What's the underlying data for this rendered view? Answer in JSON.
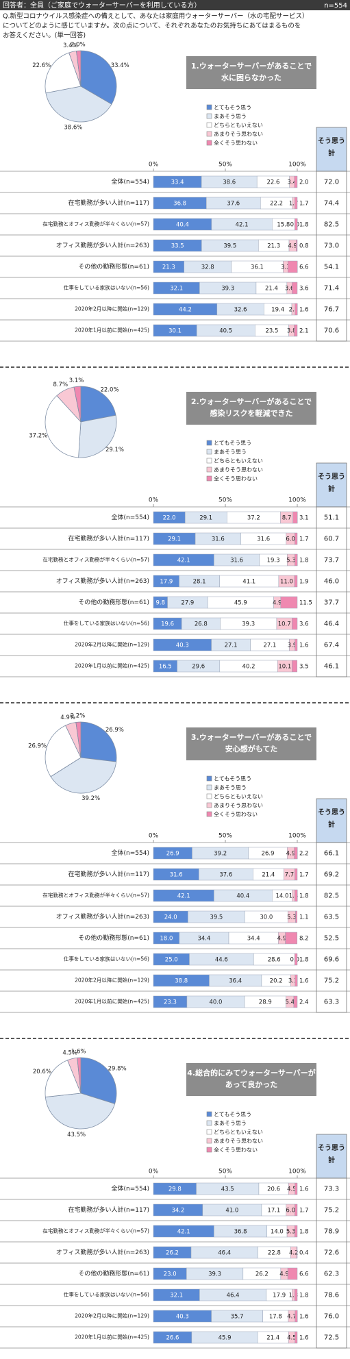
{
  "header": {
    "respondents": "回答者：全員（ご家庭でウォーターサーバーを利用している方）",
    "n": "n=554"
  },
  "question": [
    "Q.新型コロナウイルス感染症への備えとして、あなたは家庭用ウォーターサーバー（水の宅配サービス）",
    "についてどのように感じていますか。次の点について、それぞれあなたのお気持ちにあてはまるものを",
    "お答えください。(単一回答)"
  ],
  "chart_data": [
    {
      "type": "bar",
      "title": [
        "1.ウォーターサーバーがあることで",
        "水に困らなかった"
      ],
      "categories": [
        "全体(n=554)",
        "在宅勤務が多い人計(n=117)",
        "在宅勤務とオフィス勤務が半々くらい(n=57)",
        "オフィス勤務が多い人計(n=263)",
        "その他の勤務形態(n=61)",
        "仕事をしている家族はいない(n=56)",
        "2020年2月以降に開始(n=129)",
        "2020年1月以前に開始(n=425)"
      ],
      "xlim": [
        0,
        100
      ],
      "xticks": [
        {
          "value": 0,
          "label": "0%"
        },
        {
          "value": 50,
          "label": "50%"
        },
        {
          "value": 100,
          "label": "100%"
        }
      ],
      "series": [
        {
          "name": "とてもそう思う",
          "color": "#5a8ad6",
          "values": [
            33.4,
            36.8,
            40.4,
            33.5,
            21.3,
            32.1,
            44.2,
            30.1
          ],
          "value_labels": [
            "33.4",
            "36.8",
            "40.4",
            "33.5",
            "21.3",
            "32.1",
            "44.2",
            "30.1"
          ]
        },
        {
          "name": "まあそう思う",
          "color": "#dce6f2",
          "values": [
            38.6,
            37.6,
            42.1,
            39.5,
            32.8,
            39.3,
            32.6,
            40.5
          ],
          "value_labels": [
            "38.6",
            "37.6",
            "42.1",
            "39.5",
            "32.8",
            "39.3",
            "32.6",
            "40.5"
          ]
        },
        {
          "name": "どちらともいえない",
          "color": "#ffffff",
          "values": [
            22.6,
            22.2,
            15.8,
            21.3,
            36.1,
            21.4,
            19.4,
            23.5
          ],
          "value_labels": [
            "22.6",
            "22.2",
            "15.8",
            "21.3",
            "36.1",
            "21.4",
            "19.4",
            "23.5"
          ]
        },
        {
          "name": "あまりそう思わない",
          "color": "#f9c8d4",
          "values": [
            3.4,
            1.7,
            0.0,
            4.9,
            3.3,
            3.6,
            2.3,
            3.8
          ],
          "value_labels": [
            "3.4",
            "1.7",
            "0.0",
            "4.9",
            "3.3",
            "3.6",
            "2.3",
            "3.8"
          ]
        },
        {
          "name": "全くそう思わない",
          "color": "#ef88b0",
          "values": [
            2.0,
            1.7,
            1.8,
            0.8,
            6.6,
            3.6,
            1.6,
            2.1
          ],
          "value_labels": [
            "2.0",
            "1.7",
            "1.8",
            "0.8",
            "6.6",
            "3.6",
            "1.6",
            "2.1"
          ]
        }
      ],
      "totals": {
        "header": [
          "そう思う",
          "計"
        ],
        "values": [
          72.0,
          74.4,
          82.5,
          73.0,
          54.1,
          71.4,
          76.7,
          70.6
        ],
        "value_labels": [
          "72.0",
          "74.4",
          "82.5",
          "73.0",
          "54.1",
          "71.4",
          "76.7",
          "70.6"
        ]
      },
      "pie": {
        "values": [
          33.4,
          38.6,
          22.6,
          3.4,
          2.0
        ],
        "value_labels": [
          "33.4%",
          "38.6%",
          "22.6%",
          "3.4%",
          "2.0%"
        ]
      }
    },
    {
      "type": "bar",
      "title": [
        "2.ウォーターサーバーがあることで",
        "感染リスクを軽減できた"
      ],
      "categories": [
        "全体(n=554)",
        "在宅勤務が多い人計(n=117)",
        "在宅勤務とオフィス勤務が半々くらい(n=57)",
        "オフィス勤務が多い人計(n=263)",
        "その他の勤務形態(n=61)",
        "仕事をしている家族はいない(n=56)",
        "2020年2月以降に開始(n=129)",
        "2020年1月以前に開始(n=425)"
      ],
      "xlim": [
        0,
        100
      ],
      "xticks": [
        {
          "value": 0,
          "label": "0%"
        },
        {
          "value": 50,
          "label": "50%"
        },
        {
          "value": 100,
          "label": "100%"
        }
      ],
      "series": [
        {
          "name": "とてもそう思う",
          "color": "#5a8ad6",
          "values": [
            22.0,
            29.1,
            42.1,
            17.9,
            9.8,
            19.6,
            40.3,
            16.5
          ],
          "value_labels": [
            "22.0",
            "29.1",
            "42.1",
            "17.9",
            "9.8",
            "19.6",
            "40.3",
            "16.5"
          ]
        },
        {
          "name": "まあそう思う",
          "color": "#dce6f2",
          "values": [
            29.1,
            31.6,
            31.6,
            28.1,
            27.9,
            26.8,
            27.1,
            29.6
          ],
          "value_labels": [
            "29.1",
            "31.6",
            "31.6",
            "28.1",
            "27.9",
            "26.8",
            "27.1",
            "29.6"
          ]
        },
        {
          "name": "どちらともいえない",
          "color": "#ffffff",
          "values": [
            37.2,
            31.6,
            19.3,
            41.1,
            45.9,
            39.3,
            27.1,
            40.2
          ],
          "value_labels": [
            "37.2",
            "31.6",
            "19.3",
            "41.1",
            "45.9",
            "39.3",
            "27.1",
            "40.2"
          ]
        },
        {
          "name": "あまりそう思わない",
          "color": "#f9c8d4",
          "values": [
            8.7,
            6.0,
            5.3,
            11.0,
            4.9,
            10.7,
            3.9,
            10.1
          ],
          "value_labels": [
            "8.7",
            "6.0",
            "5.3",
            "11.0",
            "4.9",
            "10.7",
            "3.9",
            "10.1"
          ]
        },
        {
          "name": "全くそう思わない",
          "color": "#ef88b0",
          "values": [
            3.1,
            1.7,
            1.8,
            1.9,
            11.5,
            3.6,
            1.6,
            3.5
          ],
          "value_labels": [
            "3.1",
            "1.7",
            "1.8",
            "1.9",
            "11.5",
            "3.6",
            "1.6",
            "3.5"
          ]
        }
      ],
      "totals": {
        "header": [
          "そう思う",
          "計"
        ],
        "values": [
          51.1,
          60.7,
          73.7,
          46.0,
          37.7,
          46.4,
          67.4,
          46.1
        ],
        "value_labels": [
          "51.1",
          "60.7",
          "73.7",
          "46.0",
          "37.7",
          "46.4",
          "67.4",
          "46.1"
        ]
      },
      "pie": {
        "values": [
          22.0,
          29.1,
          37.2,
          8.7,
          3.1
        ],
        "value_labels": [
          "22.0%",
          "29.1%",
          "37.2%",
          "8.7%",
          "3.1%"
        ]
      }
    },
    {
      "type": "bar",
      "title": [
        "3.ウォーターサーバーがあることで",
        "安心感がもてた"
      ],
      "categories": [
        "全体(n=554)",
        "在宅勤務が多い人計(n=117)",
        "在宅勤務とオフィス勤務が半々くらい(n=57)",
        "オフィス勤務が多い人計(n=263)",
        "その他の勤務形態(n=61)",
        "仕事をしている家族はいない(n=56)",
        "2020年2月以降に開始(n=129)",
        "2020年1月以前に開始(n=425)"
      ],
      "xlim": [
        0,
        100
      ],
      "xticks": [
        {
          "value": 0,
          "label": "0%"
        },
        {
          "value": 50,
          "label": "50%"
        },
        {
          "value": 100,
          "label": "100%"
        }
      ],
      "series": [
        {
          "name": "とてもそう思う",
          "color": "#5a8ad6",
          "values": [
            26.9,
            31.6,
            42.1,
            24.0,
            18.0,
            25.0,
            38.8,
            23.3
          ],
          "value_labels": [
            "26.9",
            "31.6",
            "42.1",
            "24.0",
            "18.0",
            "25.0",
            "38.8",
            "23.3"
          ]
        },
        {
          "name": "まあそう思う",
          "color": "#dce6f2",
          "values": [
            39.2,
            37.6,
            40.4,
            39.5,
            34.4,
            44.6,
            36.4,
            40.0
          ],
          "value_labels": [
            "39.2",
            "37.6",
            "40.4",
            "39.5",
            "34.4",
            "44.6",
            "36.4",
            "40.0"
          ]
        },
        {
          "name": "どちらともいえない",
          "color": "#ffffff",
          "values": [
            26.9,
            21.4,
            14.0,
            30.0,
            34.4,
            28.6,
            20.2,
            28.9
          ],
          "value_labels": [
            "26.9",
            "21.4",
            "14.0",
            "30.0",
            "34.4",
            "28.6",
            "20.2",
            "28.9"
          ]
        },
        {
          "name": "あまりそう思わない",
          "color": "#f9c8d4",
          "values": [
            4.9,
            7.7,
            1.8,
            5.3,
            4.9,
            0.0,
            3.1,
            5.4
          ],
          "value_labels": [
            "4.9",
            "7.7",
            "1.8",
            "5.3",
            "4.9",
            "0.0",
            "3.1",
            "5.4"
          ]
        },
        {
          "name": "全くそう思わない",
          "color": "#ef88b0",
          "values": [
            2.2,
            1.7,
            1.8,
            1.1,
            8.2,
            1.8,
            1.6,
            2.4
          ],
          "value_labels": [
            "2.2",
            "1.7",
            "1.8",
            "1.1",
            "8.2",
            "1.8",
            "1.6",
            "2.4"
          ]
        }
      ],
      "totals": {
        "header": [
          "そう思う",
          "計"
        ],
        "values": [
          66.1,
          69.2,
          82.5,
          63.5,
          52.5,
          69.6,
          75.2,
          63.3
        ],
        "value_labels": [
          "66.1",
          "69.2",
          "82.5",
          "63.5",
          "52.5",
          "69.6",
          "75.2",
          "63.3"
        ]
      },
      "pie": {
        "values": [
          26.9,
          39.2,
          26.9,
          4.9,
          2.2
        ],
        "value_labels": [
          "26.9%",
          "39.2%",
          "26.9%",
          "4.9%",
          "2.2%"
        ]
      }
    },
    {
      "type": "bar",
      "title": [
        "4.総合的にみてウォーターサーバーが",
        "あって良かった"
      ],
      "categories": [
        "全体(n=554)",
        "在宅勤務が多い人計(n=117)",
        "在宅勤務とオフィス勤務が半々くらい(n=57)",
        "オフィス勤務が多い人計(n=263)",
        "その他の勤務形態(n=61)",
        "仕事をしている家族はいない(n=56)",
        "2020年2月以降に開始(n=129)",
        "2020年1月以前に開始(n=425)"
      ],
      "xlim": [
        0,
        100
      ],
      "xticks": [
        {
          "value": 0,
          "label": "0%"
        },
        {
          "value": 50,
          "label": "50%"
        },
        {
          "value": 100,
          "label": "100%"
        }
      ],
      "series": [
        {
          "name": "とてもそう思う",
          "color": "#5a8ad6",
          "values": [
            29.8,
            34.2,
            42.1,
            26.2,
            23.0,
            32.1,
            40.3,
            26.6
          ],
          "value_labels": [
            "29.8",
            "34.2",
            "42.1",
            "26.2",
            "23.0",
            "32.1",
            "40.3",
            "26.6"
          ]
        },
        {
          "name": "まあそう思う",
          "color": "#dce6f2",
          "values": [
            43.5,
            41.0,
            36.8,
            46.4,
            39.3,
            46.4,
            35.7,
            45.9
          ],
          "value_labels": [
            "43.5",
            "41.0",
            "36.8",
            "46.4",
            "39.3",
            "46.4",
            "35.7",
            "45.9"
          ]
        },
        {
          "name": "どちらともいえない",
          "color": "#ffffff",
          "values": [
            20.6,
            17.1,
            14.0,
            22.8,
            26.2,
            17.9,
            17.8,
            21.4
          ],
          "value_labels": [
            "20.6",
            "17.1",
            "14.0",
            "22.8",
            "26.2",
            "17.9",
            "17.8",
            "21.4"
          ]
        },
        {
          "name": "あまりそう思わない",
          "color": "#f9c8d4",
          "values": [
            4.5,
            6.0,
            5.3,
            4.2,
            4.9,
            1.8,
            4.7,
            4.5
          ],
          "value_labels": [
            "4.5",
            "6.0",
            "5.3",
            "4.2",
            "4.9",
            "1.8",
            "4.7",
            "4.5"
          ]
        },
        {
          "name": "全くそう思わない",
          "color": "#ef88b0",
          "values": [
            1.6,
            1.7,
            1.8,
            0.4,
            6.6,
            1.8,
            1.6,
            1.6
          ],
          "value_labels": [
            "1.6",
            "1.7",
            "1.8",
            "0.4",
            "6.6",
            "1.8",
            "1.6",
            "1.6"
          ]
        }
      ],
      "totals": {
        "header": [
          "そう思う",
          "計"
        ],
        "values": [
          73.3,
          75.2,
          78.9,
          72.6,
          62.3,
          78.6,
          76.0,
          72.5
        ],
        "value_labels": [
          "73.3",
          "75.2",
          "78.9",
          "72.6",
          "62.3",
          "78.6",
          "76.0",
          "72.5"
        ]
      },
      "pie": {
        "values": [
          29.8,
          43.5,
          20.6,
          4.5,
          1.6
        ],
        "value_labels": [
          "29.8%",
          "43.5%",
          "20.6%",
          "4.5%",
          "1.6%"
        ]
      }
    }
  ]
}
